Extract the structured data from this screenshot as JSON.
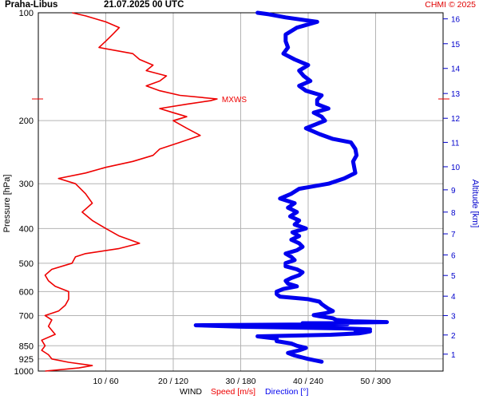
{
  "header": {
    "station": "Praha-Libus",
    "datetime": "21.07.2025 00 UTC",
    "credit": "CHMI © 2025"
  },
  "colors": {
    "speed": "#ee0000",
    "direction": "#0000ee",
    "grid": "#b4b4b4",
    "text": "#000000",
    "altitude": "#0000cc"
  },
  "chart_data": {
    "type": "line",
    "yaxis": {
      "label": "Pressure [hPa]",
      "scale": "log",
      "range": [
        1000,
        100
      ],
      "ticks": [
        100,
        200,
        300,
        400,
        500,
        600,
        700,
        850,
        925,
        1000
      ]
    },
    "xaxis": {
      "label": "WIND",
      "speed_label": "Speed [m/s]",
      "direction_label": "Direction [°]",
      "speed_range": [
        0,
        60
      ],
      "direction_range": [
        0,
        360
      ],
      "ticks": [
        {
          "speed": 10,
          "dir": 60,
          "label": "10 / 60"
        },
        {
          "speed": 20,
          "dir": 120,
          "label": "20 / 120"
        },
        {
          "speed": 30,
          "dir": 180,
          "label": "30 / 180"
        },
        {
          "speed": 40,
          "dir": 240,
          "label": "40 / 240"
        },
        {
          "speed": 50,
          "dir": 300,
          "label": "50 / 300"
        }
      ]
    },
    "altitude_axis": {
      "label": "Altitude [km]",
      "ticks": [
        {
          "km": 1,
          "p": 897
        },
        {
          "km": 2,
          "p": 793
        },
        {
          "km": 3,
          "p": 700
        },
        {
          "km": 4,
          "p": 618
        },
        {
          "km": 5,
          "p": 541
        },
        {
          "km": 6,
          "p": 474
        },
        {
          "km": 7,
          "p": 414
        },
        {
          "km": 8,
          "p": 360
        },
        {
          "km": 9,
          "p": 312
        },
        {
          "km": 10,
          "p": 269
        },
        {
          "km": 11,
          "p": 230
        },
        {
          "km": 12,
          "p": 197
        },
        {
          "km": 13,
          "p": 168
        },
        {
          "km": 14,
          "p": 143
        },
        {
          "km": 15,
          "p": 122
        },
        {
          "km": 16,
          "p": 104
        }
      ]
    },
    "annotation": {
      "text": "MXWS",
      "pressure": 174,
      "speed": 26.5
    },
    "grid": true,
    "series": [
      {
        "name": "Speed [m/s]",
        "points": [
          [
            1000,
            1.0
          ],
          [
            980,
            6.0
          ],
          [
            965,
            8.0
          ],
          [
            945,
            4.5
          ],
          [
            925,
            2.0
          ],
          [
            900,
            1.5
          ],
          [
            875,
            0.5
          ],
          [
            850,
            1.0
          ],
          [
            820,
            0.5
          ],
          [
            790,
            2.5
          ],
          [
            750,
            1.5
          ],
          [
            720,
            2.0
          ],
          [
            700,
            1.0
          ],
          [
            680,
            3.0
          ],
          [
            655,
            4.0
          ],
          [
            630,
            4.5
          ],
          [
            600,
            4.5
          ],
          [
            580,
            2.5
          ],
          [
            560,
            1.5
          ],
          [
            540,
            1.0
          ],
          [
            520,
            2.0
          ],
          [
            500,
            5.0
          ],
          [
            480,
            5.5
          ],
          [
            470,
            7.0
          ],
          [
            455,
            12.0
          ],
          [
            440,
            15.0
          ],
          [
            420,
            12.0
          ],
          [
            400,
            10.0
          ],
          [
            380,
            8.0
          ],
          [
            360,
            6.5
          ],
          [
            340,
            8.0
          ],
          [
            320,
            7.0
          ],
          [
            300,
            5.5
          ],
          [
            290,
            3.0
          ],
          [
            280,
            7.0
          ],
          [
            270,
            10.0
          ],
          [
            260,
            14.0
          ],
          [
            250,
            17.0
          ],
          [
            240,
            18.0
          ],
          [
            230,
            21.0
          ],
          [
            220,
            24.0
          ],
          [
            210,
            22.0
          ],
          [
            200,
            20.0
          ],
          [
            195,
            22.0
          ],
          [
            190,
            20.0
          ],
          [
            185,
            18.0
          ],
          [
            180,
            22.0
          ],
          [
            176,
            25.5
          ],
          [
            174,
            26.5
          ],
          [
            170,
            21.0
          ],
          [
            165,
            18.0
          ],
          [
            160,
            16.0
          ],
          [
            155,
            18.0
          ],
          [
            150,
            19.0
          ],
          [
            145,
            16.0
          ],
          [
            140,
            17.0
          ],
          [
            135,
            15.0
          ],
          [
            130,
            14.0
          ],
          [
            125,
            9.0
          ],
          [
            120,
            10.0
          ],
          [
            115,
            11.0
          ],
          [
            110,
            12.0
          ],
          [
            106,
            10.0
          ],
          [
            102,
            7.0
          ],
          [
            100,
            5.0
          ]
        ]
      },
      {
        "name": "Direction [°]",
        "points": [
          [
            942,
            252
          ],
          [
            925,
            240
          ],
          [
            905,
            228
          ],
          [
            890,
            222
          ],
          [
            875,
            232
          ],
          [
            862,
            238
          ],
          [
            850,
            230
          ],
          [
            838,
            225
          ],
          [
            825,
            212
          ],
          [
            812,
            212
          ],
          [
            800,
            195
          ],
          [
            792,
            260
          ],
          [
            785,
            285
          ],
          [
            780,
            290
          ],
          [
            775,
            295
          ],
          [
            770,
            282
          ],
          [
            765,
            295
          ],
          [
            760,
            270
          ],
          [
            752,
            180
          ],
          [
            745,
            140
          ],
          [
            740,
            275
          ],
          [
            735,
            235
          ],
          [
            730,
            310
          ],
          [
            726,
            280
          ],
          [
            720,
            265
          ],
          [
            712,
            262
          ],
          [
            703,
            250
          ],
          [
            698,
            245
          ],
          [
            690,
            255
          ],
          [
            680,
            262
          ],
          [
            670,
            258
          ],
          [
            660,
            255
          ],
          [
            650,
            252
          ],
          [
            640,
            250
          ],
          [
            630,
            240
          ],
          [
            620,
            215
          ],
          [
            610,
            212
          ],
          [
            600,
            212
          ],
          [
            590,
            218
          ],
          [
            580,
            230
          ],
          [
            570,
            222
          ],
          [
            560,
            220
          ],
          [
            550,
            225
          ],
          [
            540,
            232
          ],
          [
            530,
            235
          ],
          [
            520,
            230
          ],
          [
            510,
            220
          ],
          [
            500,
            220
          ],
          [
            490,
            228
          ],
          [
            480,
            225
          ],
          [
            470,
            220
          ],
          [
            460,
            230
          ],
          [
            450,
            235
          ],
          [
            440,
            232
          ],
          [
            430,
            225
          ],
          [
            420,
            232
          ],
          [
            410,
            226
          ],
          [
            400,
            238
          ],
          [
            390,
            228
          ],
          [
            380,
            232
          ],
          [
            370,
            224
          ],
          [
            360,
            230
          ],
          [
            350,
            222
          ],
          [
            340,
            228
          ],
          [
            330,
            215
          ],
          [
            320,
            225
          ],
          [
            310,
            232
          ],
          [
            300,
            258
          ],
          [
            290,
            272
          ],
          [
            280,
            282
          ],
          [
            270,
            281
          ],
          [
            260,
            280
          ],
          [
            250,
            283
          ],
          [
            240,
            282
          ],
          [
            230,
            278
          ],
          [
            225,
            262
          ],
          [
            218,
            250
          ],
          [
            210,
            238
          ],
          [
            200,
            255
          ],
          [
            195,
            252
          ],
          [
            190,
            245
          ],
          [
            185,
            258
          ],
          [
            180,
            248
          ],
          [
            175,
            248
          ],
          [
            170,
            252
          ],
          [
            165,
            238
          ],
          [
            160,
            232
          ],
          [
            155,
            242
          ],
          [
            150,
            236
          ],
          [
            145,
            232
          ],
          [
            140,
            240
          ],
          [
            135,
            228
          ],
          [
            130,
            218
          ],
          [
            125,
            222
          ],
          [
            120,
            220
          ],
          [
            115,
            220
          ],
          [
            110,
            230
          ],
          [
            106,
            248
          ],
          [
            103,
            220
          ],
          [
            101,
            205
          ],
          [
            100,
            195
          ]
        ]
      }
    ]
  }
}
